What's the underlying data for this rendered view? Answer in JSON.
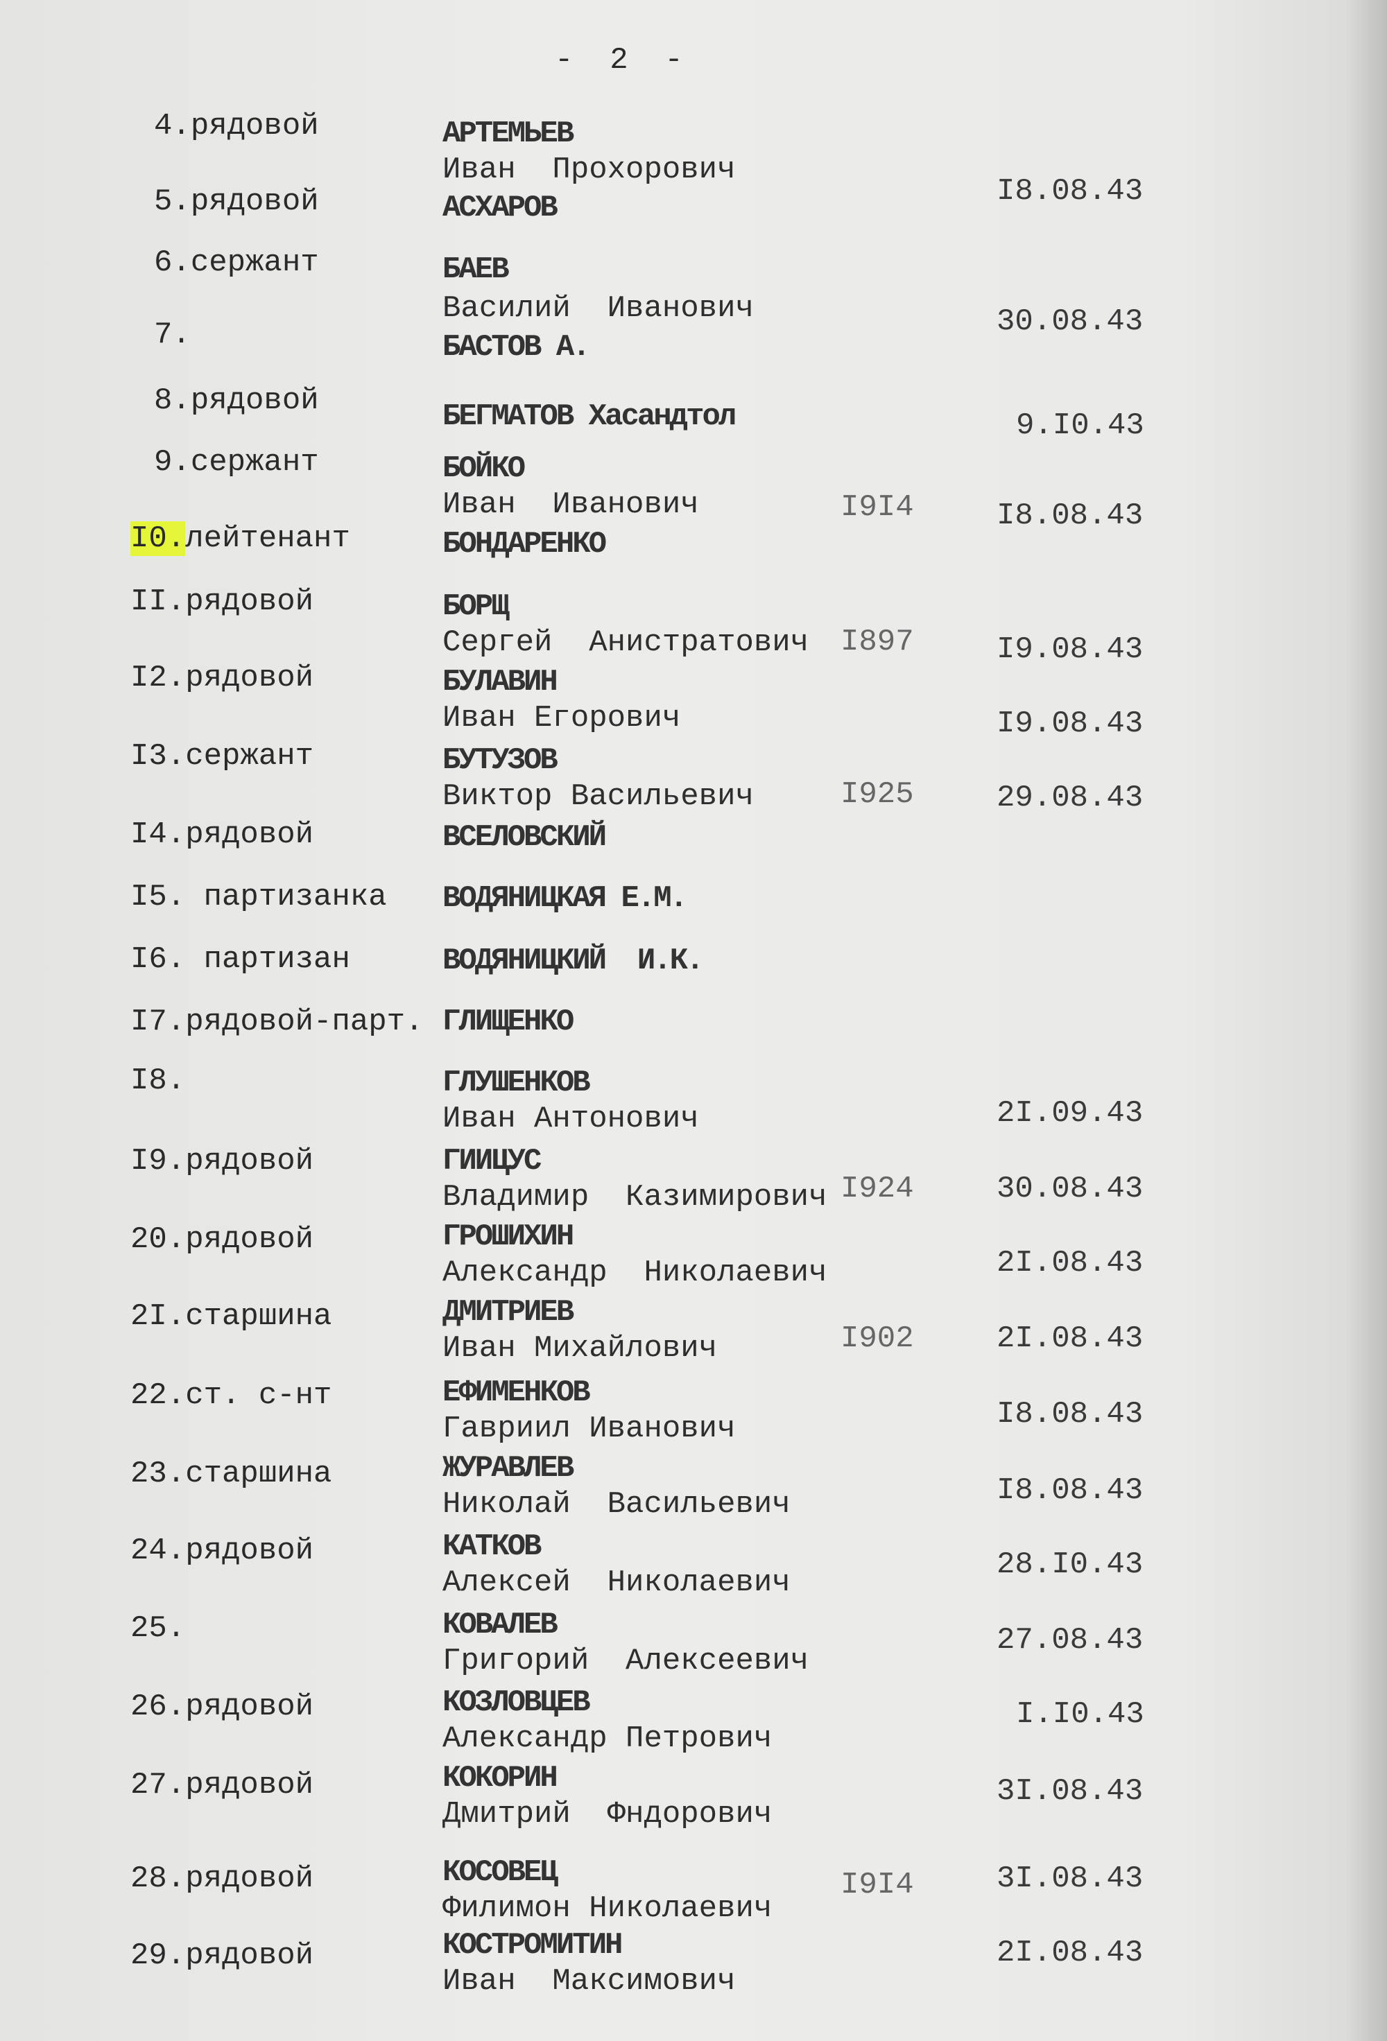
{
  "page_number": "-  2  -",
  "highlight_color": "#e4f53a",
  "entries": [
    {
      "num": "4.",
      "rank": "рядовой",
      "surname": "АРТЕМЬЕВ",
      "given": "Иван  Прохорович",
      "year": "",
      "date": "I8.08.43"
    },
    {
      "num": "5.",
      "rank": "рядовой",
      "surname": "АСХАРОВ",
      "given": "",
      "year": "",
      "date": ""
    },
    {
      "num": "6.",
      "rank": "сержант",
      "surname": "БАЕВ",
      "given": "Василий  Иванович",
      "year": "",
      "date": "30.08.43"
    },
    {
      "num": "7.",
      "rank": "",
      "surname": "БАСТОВ А.",
      "given": "",
      "year": "",
      "date": ""
    },
    {
      "num": "8.",
      "rank": "рядовой",
      "surname": "БЕГМАТОВ Хасандтол",
      "given": "",
      "year": "",
      "date": "9.I0.43"
    },
    {
      "num": "9.",
      "rank": "сержант",
      "surname": "БОЙКО",
      "given": "Иван  Иванович",
      "year": "I9I4",
      "date": "I8.08.43"
    },
    {
      "num": "I0.",
      "rank": "лейтенант",
      "surname": "БОНДАРЕНКО",
      "given": "",
      "year": "",
      "date": "",
      "highlight": true
    },
    {
      "num": "II.",
      "rank": "рядовой",
      "surname": "БОРЩ",
      "given": "Сергей  Анистратович",
      "year": "I897",
      "date": "I9.08.43"
    },
    {
      "num": "I2.",
      "rank": "рядовой",
      "surname": "БУЛАВИН",
      "given": "Иван Егорович",
      "year": "",
      "date": "I9.08.43"
    },
    {
      "num": "I3.",
      "rank": "сержант",
      "surname": "БУТУЗОВ",
      "given": "Виктор Васильевич",
      "year": "I925",
      "date": "29.08.43"
    },
    {
      "num": "I4.",
      "rank": "рядовой",
      "surname": "ВСЕЛОВСКИЙ",
      "given": "",
      "year": "",
      "date": ""
    },
    {
      "num": "I5.",
      "rank": " партизанка",
      "surname": "ВОДЯНИЦКАЯ Е.М.",
      "given": "",
      "year": "",
      "date": ""
    },
    {
      "num": "I6.",
      "rank": " партизан",
      "surname": "ВОДЯНИЦКИЙ  И.К.",
      "given": "",
      "year": "",
      "date": ""
    },
    {
      "num": "I7.",
      "rank": "рядовой-парт.",
      "surname": "ГЛИЩЕНКО",
      "given": "",
      "year": "",
      "date": ""
    },
    {
      "num": "I8.",
      "rank": "",
      "surname": "ГЛУШЕНКОВ",
      "given": "Иван Антонович",
      "year": "",
      "date": "2I.09.43"
    },
    {
      "num": "I9.",
      "rank": "рядовой",
      "surname": "ГИИЦУС",
      "given": "Владимир  Казимирович",
      "year": "I924",
      "date": "30.08.43"
    },
    {
      "num": "20.",
      "rank": "рядовой",
      "surname": "ГРОШИХИН",
      "given": "Александр  Николаевич",
      "year": "",
      "date": "2I.08.43"
    },
    {
      "num": "2I.",
      "rank": "старшина",
      "surname": "ДМИТРИЕВ",
      "given": "Иван Михайлович",
      "year": "I902",
      "date": "2I.08.43"
    },
    {
      "num": "22.",
      "rank": "ст. с-нт",
      "surname": "ЕФИМЕНКОВ",
      "given": "Гавриил Иванович",
      "year": "",
      "date": "I8.08.43"
    },
    {
      "num": "23.",
      "rank": "старшина",
      "surname": "ЖУРАВЛЕВ",
      "given": "Николай  Васильевич",
      "year": "",
      "date": "I8.08.43"
    },
    {
      "num": "24.",
      "rank": "рядовой",
      "surname": "КАТКОВ",
      "given": "Алексей  Николаевич",
      "year": "",
      "date": "28.I0.43"
    },
    {
      "num": "25.",
      "rank": "",
      "surname": "КОВАЛЕВ",
      "given": "Григорий  Алексеевич",
      "year": "",
      "date": "27.08.43"
    },
    {
      "num": "26.",
      "rank": "рядовой",
      "surname": "КОЗЛОВЦЕВ",
      "given": "Александр Петрович",
      "year": "",
      "date": "I.I0.43"
    },
    {
      "num": "27.",
      "rank": "рядовой",
      "surname": "КОКОРИН",
      "given": "Дмитрий  Фндорович",
      "year": "",
      "date": "3I.08.43"
    },
    {
      "num": "28.",
      "rank": "рядовой",
      "surname": "КОСОВЕЦ",
      "given": "Филимон Николаевич",
      "year": "I9I4",
      "date": "3I.08.43"
    },
    {
      "num": "29.",
      "rank": "рядовой",
      "surname": "КОСТРОМИТИН",
      "given": "Иван  Максимович",
      "year": "",
      "date": "2I.08.43"
    }
  ]
}
